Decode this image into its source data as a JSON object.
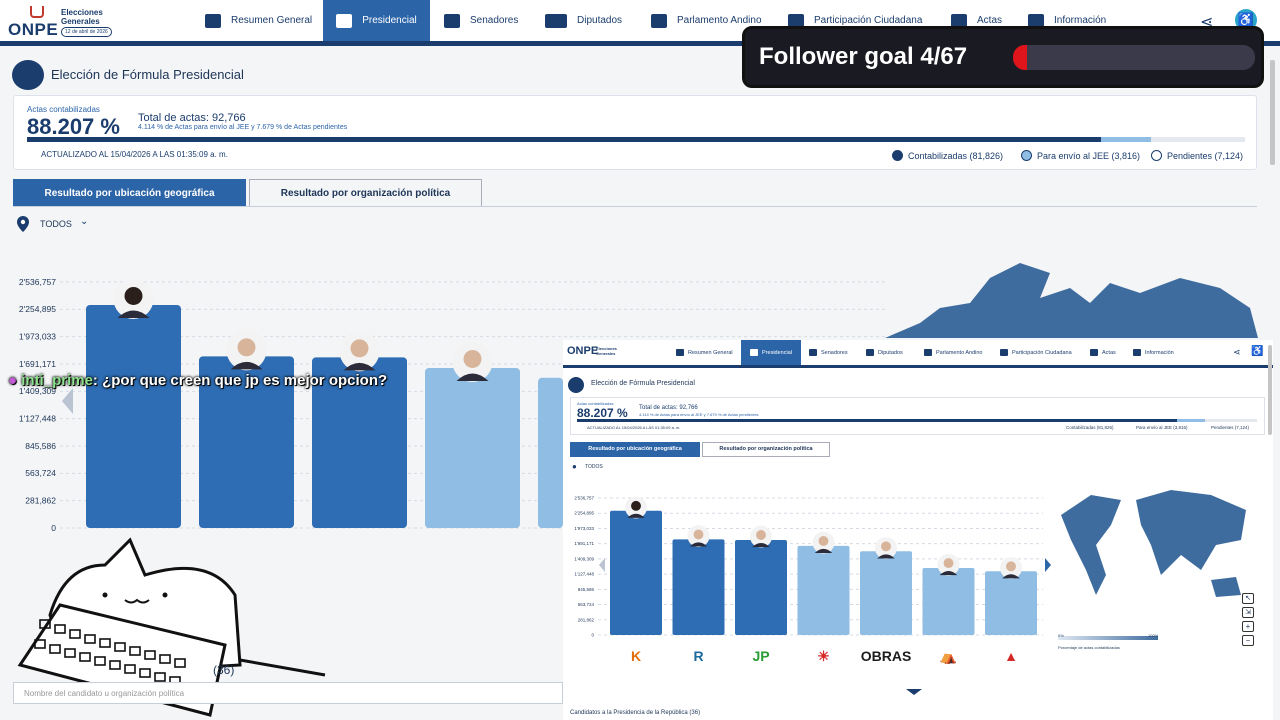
{
  "logo": {
    "brand": "ONPE",
    "line1": "Elecciones",
    "line2": "Generales",
    "date": "12 de abril de 2026"
  },
  "nav": [
    {
      "label": "Resumen General",
      "icon": "grid-icon"
    },
    {
      "label": "Presidencial",
      "icon": "seal-icon",
      "active": true
    },
    {
      "label": "Senadores",
      "icon": "senate-icon"
    },
    {
      "label": "Diputados",
      "icon": "building-icon"
    },
    {
      "label": "Parlamento Andino",
      "icon": "globe-icon"
    },
    {
      "label": "Participación Ciudadana",
      "icon": "people-icon"
    },
    {
      "label": "Actas",
      "icon": "shield-icon"
    },
    {
      "label": "Información",
      "icon": "info-icon"
    }
  ],
  "header": {
    "title": "Elección de Fórmula Presidencial"
  },
  "summary": {
    "actas_label": "Actas contabilizadas",
    "percent": "88.207 %",
    "total": "Total de actas: 92,766",
    "subtext": "4.114 % de Actas para envío al JEE y 7.679 % de Actas pendientes",
    "updated": "ACTUALIZADO AL 15/04/2026 A LAS 01:35:09 a. m.",
    "progress": {
      "contabilizadas": 0.88207,
      "jee": 0.04114
    },
    "legend": [
      {
        "label": "Contabilizadas (81,826)",
        "color": "#1b3d6d"
      },
      {
        "label": "Para envío al JEE (3,816)",
        "color": "#8fbde3"
      },
      {
        "label": "Pendientes (7,124)",
        "color": "#ffffff"
      }
    ]
  },
  "tabs": [
    "Resultado por ubicación geográfica",
    "Resultado por organización política"
  ],
  "filter": {
    "label": "TODOS"
  },
  "chart_data": {
    "type": "bar",
    "ticks": [
      "2'536,757",
      "2'254,895",
      "1'973,033",
      "1'691,171",
      "1'409,309",
      "1'127,448",
      "845,586",
      "563,724",
      "281,862",
      "0"
    ],
    "ylim": [
      0,
      2536757
    ],
    "values": [
      2300000,
      1770000,
      1760000,
      1650000,
      1550000,
      1240000,
      1180000
    ],
    "colors": [
      "#2e6db4",
      "#2e6db4",
      "#2e6db4",
      "#8fbde3",
      "#8fbde3",
      "#8fbde3",
      "#8fbde3"
    ],
    "party_logos": [
      "K",
      "R",
      "JP",
      "☀",
      "OBRAS",
      "⛺",
      "▲"
    ]
  },
  "chat": {
    "user": "inti_prime",
    "message": "¿por que creen que jp es mejor opcion?"
  },
  "goal": {
    "text": "Follower goal 4/67",
    "progress": 0.0597
  },
  "candidates_label": "Candidatos a la Presidencia de la República",
  "candidates_count": "(36)",
  "search": {
    "placeholder": "Nombre del candidato u organización política"
  },
  "mini": {
    "map_legend_min": "0%",
    "map_legend_max": "100%",
    "map_legend_label": "Porcentaje de actas contabilizadas"
  }
}
